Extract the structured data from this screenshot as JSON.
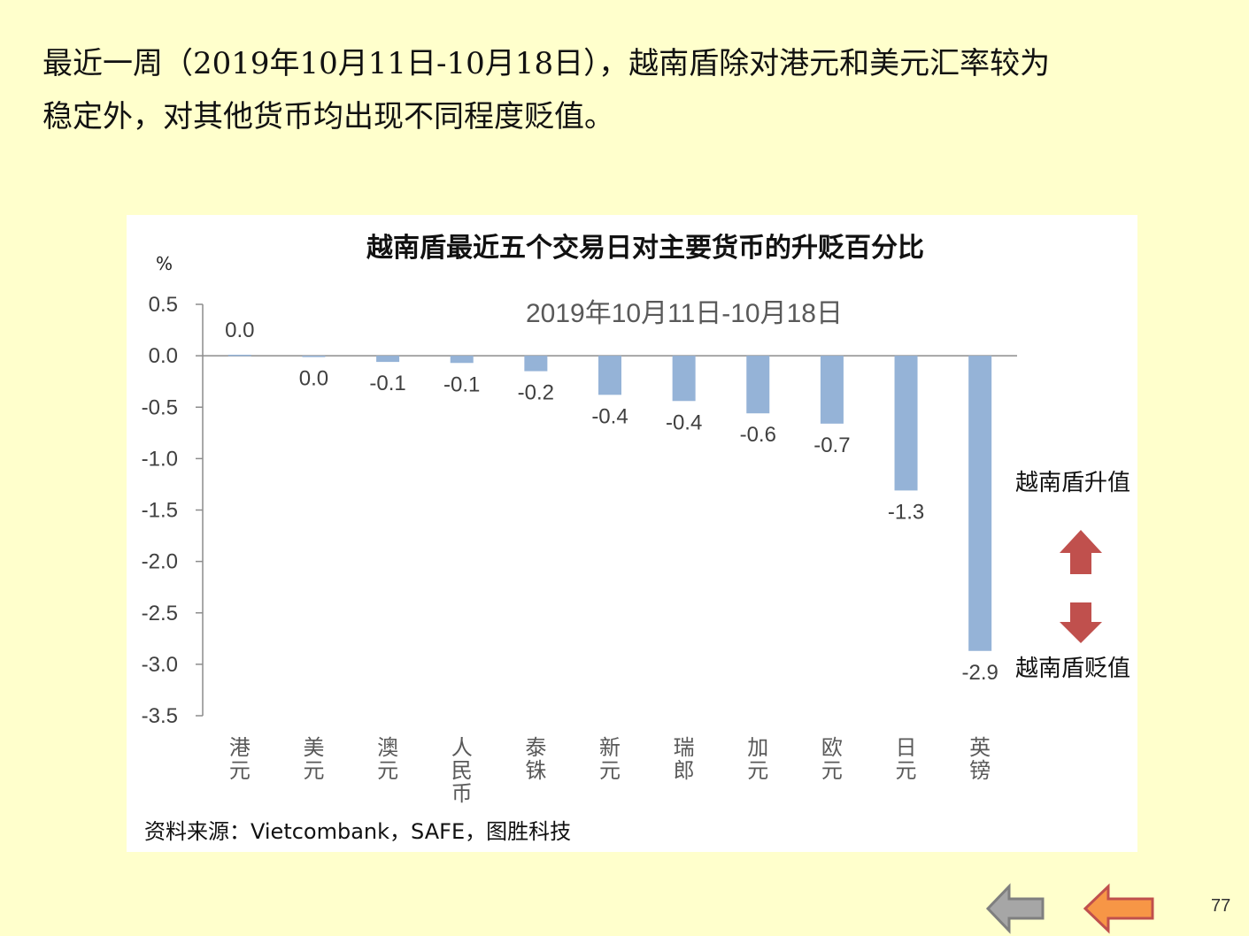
{
  "intro": {
    "line1": "最近一周（2019年10月11日-10月18日），越南盾除对港元和美元汇率较为",
    "line2": "稳定外，对其他货币均出现不同程度贬值。"
  },
  "chart_data": {
    "type": "bar",
    "title": "越南盾最近五个交易日对主要货币的升贬百分比",
    "subtitle": "2019年10月11日-10月18日",
    "unit": "%",
    "categories": [
      "港元",
      "美元",
      "澳元",
      "人民币",
      "泰铢",
      "新元",
      "瑞郎",
      "加元",
      "欧元",
      "日元",
      "英镑"
    ],
    "values": [
      0.01,
      -0.01,
      -0.06,
      -0.07,
      -0.15,
      -0.38,
      -0.44,
      -0.56,
      -0.66,
      -1.31,
      -2.87
    ],
    "data_labels": [
      "0.0",
      "0.0",
      "-0.1",
      "-0.1",
      "-0.2",
      "-0.4",
      "-0.4",
      "-0.6",
      "-0.7",
      "-1.3",
      "-2.9"
    ],
    "ylim": [
      -3.5,
      0.5
    ],
    "yticks": [
      "0.5",
      "0.0",
      "-0.5",
      "-1.0",
      "-1.5",
      "-2.0",
      "-2.5",
      "-3.0",
      "-3.5"
    ],
    "ytick_values": [
      0.5,
      0.0,
      -0.5,
      -1.0,
      -1.5,
      -2.0,
      -2.5,
      -3.0,
      -3.5
    ],
    "bar_color": "#95B3D7",
    "grid": false,
    "source": "资料来源：Vietcombank，SAFE，图胜科技"
  },
  "legend": {
    "up_label": "越南盾升值",
    "down_label": "越南盾贬值",
    "arrow_color": "#C0504D"
  },
  "nav": {
    "back_color": "#A6A6A6",
    "prev_color": "#F79646"
  },
  "page_number": "77"
}
